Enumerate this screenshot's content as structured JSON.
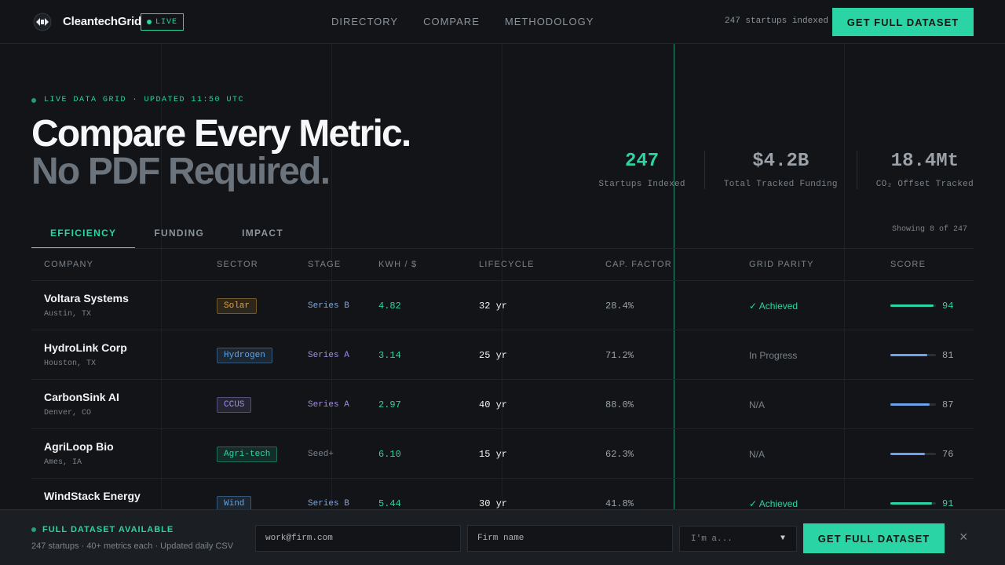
{
  "nav": {
    "brand": "CleantechGrid",
    "live_badge": "LIVE",
    "links": [
      "DIRECTORY",
      "COMPARE",
      "METHODOLOGY"
    ],
    "indexed": "247 startups indexed",
    "cta": "GET FULL DATASET"
  },
  "hero": {
    "eyebrow": "LIVE DATA GRID · UPDATED 11:50 UTC",
    "headline": "Compare Every Metric.",
    "subheadline": "No PDF Required."
  },
  "stats": [
    {
      "value": "247",
      "label": "Startups Indexed",
      "accent": "#2bd4a4"
    },
    {
      "value": "$4.2B",
      "label": "Total Tracked Funding"
    },
    {
      "value": "18.4Mt",
      "label": "CO₂ Offset Tracked"
    }
  ],
  "tabs": [
    "EFFICIENCY",
    "FUNDING",
    "IMPACT"
  ],
  "active_tab": "EFFICIENCY",
  "showing": "Showing 8 of 247",
  "table": {
    "headers": [
      "COMPANY",
      "SECTOR",
      "STAGE",
      "KWH / $",
      "LIFECYCLE",
      "CAP. FACTOR",
      "GRID PARITY",
      "SCORE"
    ],
    "rows": [
      {
        "name": "Voltara Systems",
        "location": "Austin, TX",
        "sector": "Solar",
        "sector_color": "#e0a33a",
        "stage": "Series B",
        "stage_color": "#7ea6e8",
        "kwh": "4.82",
        "lifecycle": "32 yr",
        "cap": "28.4%",
        "parity": "✓ Achieved",
        "parity_state": "achieved",
        "score": 94,
        "score_color": "#2bd4a4"
      },
      {
        "name": "HydroLink Corp",
        "location": "Houston, TX",
        "sector": "Hydrogen",
        "sector_color": "#5fa3e8",
        "stage": "Series A",
        "stage_color": "#a28be8",
        "kwh": "3.14",
        "lifecycle": "25 yr",
        "cap": "71.2%",
        "parity": "In Progress",
        "parity_state": "na",
        "score": 81,
        "score_color": "#6ea2ef"
      },
      {
        "name": "CarbonSink AI",
        "location": "Denver, CO",
        "sector": "CCUS",
        "sector_color": "#a28be8",
        "stage": "Series A",
        "stage_color": "#a28be8",
        "kwh": "2.97",
        "lifecycle": "40 yr",
        "cap": "88.0%",
        "parity": "N/A",
        "parity_state": "na",
        "score": 87,
        "score_color": "#6ea2ef"
      },
      {
        "name": "AgriLoop Bio",
        "location": "Ames, IA",
        "sector": "Agri-tech",
        "sector_color": "#2bd4a4",
        "stage": "Seed+",
        "stage_color": "#7b838b",
        "kwh": "6.10",
        "lifecycle": "15 yr",
        "cap": "62.3%",
        "parity": "N/A",
        "parity_state": "na",
        "score": 76,
        "score_color": "#6ea2ef"
      },
      {
        "name": "WindStack Energy",
        "location": "",
        "sector": "Wind",
        "sector_color": "#5fa3e8",
        "stage": "Series B",
        "stage_color": "#7ea6e8",
        "kwh": "5.44",
        "lifecycle": "30 yr",
        "cap": "41.8%",
        "parity": "✓ Achieved",
        "parity_state": "achieved",
        "score": 91,
        "score_color": "#2bd4a4"
      }
    ]
  },
  "banner": {
    "title": "FULL DATASET AVAILABLE",
    "subtitle": "247 startups · 40+ metrics each · Updated daily CSV",
    "email_placeholder": "work@firm.com",
    "firm_placeholder": "Firm name",
    "role_placeholder": "I'm a...",
    "cta": "GET FULL DATASET",
    "close": "×"
  }
}
